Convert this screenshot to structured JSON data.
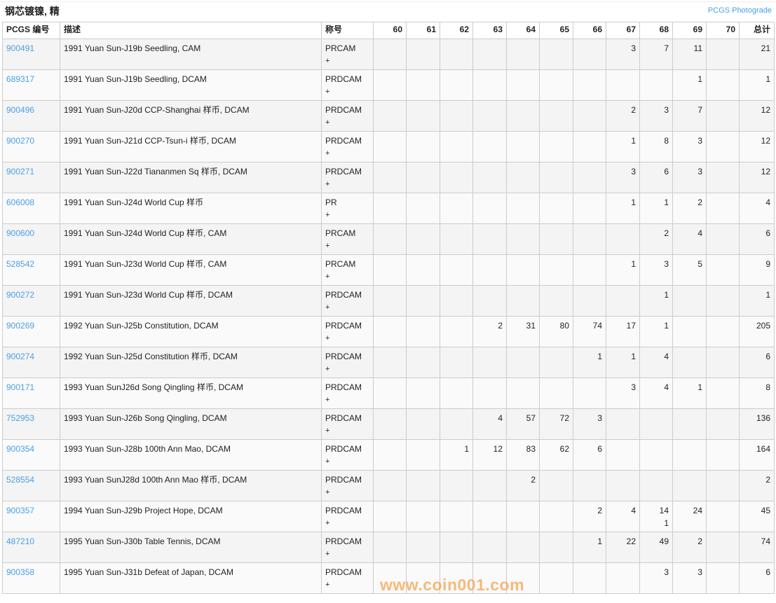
{
  "title": "钢芯镀镍, 精",
  "photograde_link": "PCGS Photograde",
  "headers": {
    "pcgs": "PCGS 编号",
    "desc": "描述",
    "designation": "称号",
    "grades": [
      "60",
      "61",
      "62",
      "63",
      "64",
      "65",
      "66",
      "67",
      "68",
      "69",
      "70"
    ],
    "total": "总计"
  },
  "rows": [
    {
      "pcgs": "900491",
      "desc": "1991 Yuan Sun-J19b Seedling, CAM",
      "designation": "PRCAM",
      "plus": "+",
      "grades": [
        "",
        "",
        "",
        "",
        "",
        "",
        "",
        "3",
        "7",
        "11",
        ""
      ],
      "total": "21"
    },
    {
      "pcgs": "689317",
      "desc": "1991 Yuan Sun-J19b Seedling, DCAM",
      "designation": "PRDCAM",
      "plus": "+",
      "grades": [
        "",
        "",
        "",
        "",
        "",
        "",
        "",
        "",
        "",
        "1",
        ""
      ],
      "total": "1"
    },
    {
      "pcgs": "900496",
      "desc": "1991 Yuan Sun-J20d CCP-Shanghai 样币, DCAM",
      "designation": "PRDCAM",
      "plus": "+",
      "grades": [
        "",
        "",
        "",
        "",
        "",
        "",
        "",
        "2",
        "3",
        "7",
        ""
      ],
      "total": "12"
    },
    {
      "pcgs": "900270",
      "desc": "1991 Yuan Sun-J21d CCP-Tsun-i 样币, DCAM",
      "designation": "PRDCAM",
      "plus": "+",
      "grades": [
        "",
        "",
        "",
        "",
        "",
        "",
        "",
        "1",
        "8",
        "3",
        ""
      ],
      "total": "12"
    },
    {
      "pcgs": "900271",
      "desc": "1991 Yuan Sun-J22d Tiananmen Sq 样币, DCAM",
      "designation": "PRDCAM",
      "plus": "+",
      "grades": [
        "",
        "",
        "",
        "",
        "",
        "",
        "",
        "3",
        "6",
        "3",
        ""
      ],
      "total": "12"
    },
    {
      "pcgs": "606008",
      "desc": "1991 Yuan Sun-J24d World Cup 样币",
      "designation": "PR",
      "plus": "+",
      "grades": [
        "",
        "",
        "",
        "",
        "",
        "",
        "",
        "1",
        "1",
        "2",
        ""
      ],
      "total": "4"
    },
    {
      "pcgs": "900600",
      "desc": "1991 Yuan Sun-J24d World Cup 样币, CAM",
      "designation": "PRCAM",
      "plus": "+",
      "grades": [
        "",
        "",
        "",
        "",
        "",
        "",
        "",
        "",
        "2",
        "4",
        ""
      ],
      "total": "6"
    },
    {
      "pcgs": "528542",
      "desc": "1991 Yuan Sun-J23d World Cup 样币, CAM",
      "designation": "PRCAM",
      "plus": "+",
      "grades": [
        "",
        "",
        "",
        "",
        "",
        "",
        "",
        "1",
        "3",
        "5",
        ""
      ],
      "total": "9"
    },
    {
      "pcgs": "900272",
      "desc": "1991 Yuan Sun-J23d World Cup 样币, DCAM",
      "designation": "PRDCAM",
      "plus": "+",
      "grades": [
        "",
        "",
        "",
        "",
        "",
        "",
        "",
        "",
        "1",
        "",
        ""
      ],
      "total": "1"
    },
    {
      "pcgs": "900269",
      "desc": "1992 Yuan Sun-J25b Constitution, DCAM",
      "designation": "PRDCAM",
      "plus": "+",
      "grades": [
        "",
        "",
        "",
        "2",
        "31",
        "80",
        "74",
        "17",
        "1",
        "",
        ""
      ],
      "total": "205"
    },
    {
      "pcgs": "900274",
      "desc": "1992 Yuan Sun-J25d Constitution 样币, DCAM",
      "designation": "PRDCAM",
      "plus": "+",
      "grades": [
        "",
        "",
        "",
        "",
        "",
        "",
        "1",
        "1",
        "4",
        "",
        ""
      ],
      "total": "6"
    },
    {
      "pcgs": "900171",
      "desc": "1993 Yuan SunJ26d Song Qingling 样币, DCAM",
      "designation": "PRDCAM",
      "plus": "+",
      "grades": [
        "",
        "",
        "",
        "",
        "",
        "",
        "",
        "3",
        "4",
        "1",
        ""
      ],
      "total": "8"
    },
    {
      "pcgs": "752953",
      "desc": "1993 Yuan Sun-J26b Song Qingling, DCAM",
      "designation": "PRDCAM",
      "plus": "+",
      "grades": [
        "",
        "",
        "",
        "4",
        "57",
        "72",
        "3",
        "",
        "",
        "",
        ""
      ],
      "total": "136"
    },
    {
      "pcgs": "900354",
      "desc": "1993 Yuan Sun-J28b 100th Ann Mao, DCAM",
      "designation": "PRDCAM",
      "plus": "+",
      "grades": [
        "",
        "",
        "1",
        "12",
        "83",
        "62",
        "6",
        "",
        "",
        "",
        ""
      ],
      "total": "164"
    },
    {
      "pcgs": "528554",
      "desc": "1993 Yuan SunJ28d 100th Ann Mao 样币, DCAM",
      "designation": "PRDCAM",
      "plus": "+",
      "grades": [
        "",
        "",
        "",
        "",
        "2",
        "",
        "",
        "",
        "",
        "",
        ""
      ],
      "total": "2"
    },
    {
      "pcgs": "900357",
      "desc": "1994 Yuan Sun-J29b Project Hope, DCAM",
      "designation": "PRDCAM",
      "plus": "+",
      "grades": [
        "",
        "",
        "",
        "",
        "",
        "",
        "2",
        "4",
        "14\n1",
        "24",
        ""
      ],
      "total": "45"
    },
    {
      "pcgs": "487210",
      "desc": "1995 Yuan Sun-J30b Table Tennis, DCAM",
      "designation": "PRDCAM",
      "plus": "+",
      "grades": [
        "",
        "",
        "",
        "",
        "",
        "",
        "1",
        "22",
        "49",
        "2",
        ""
      ],
      "total": "74"
    },
    {
      "pcgs": "900358",
      "desc": "1995 Yuan Sun-J31b Defeat of Japan, DCAM",
      "designation": "PRDCAM",
      "plus": "+",
      "grades": [
        "",
        "",
        "",
        "",
        "",
        "",
        "",
        "",
        "3",
        "3",
        ""
      ],
      "total": "6"
    }
  ],
  "watermark": "www.coin001.com",
  "colors": {
    "link": "#4aa0e6",
    "watermark": "#f7a350"
  }
}
